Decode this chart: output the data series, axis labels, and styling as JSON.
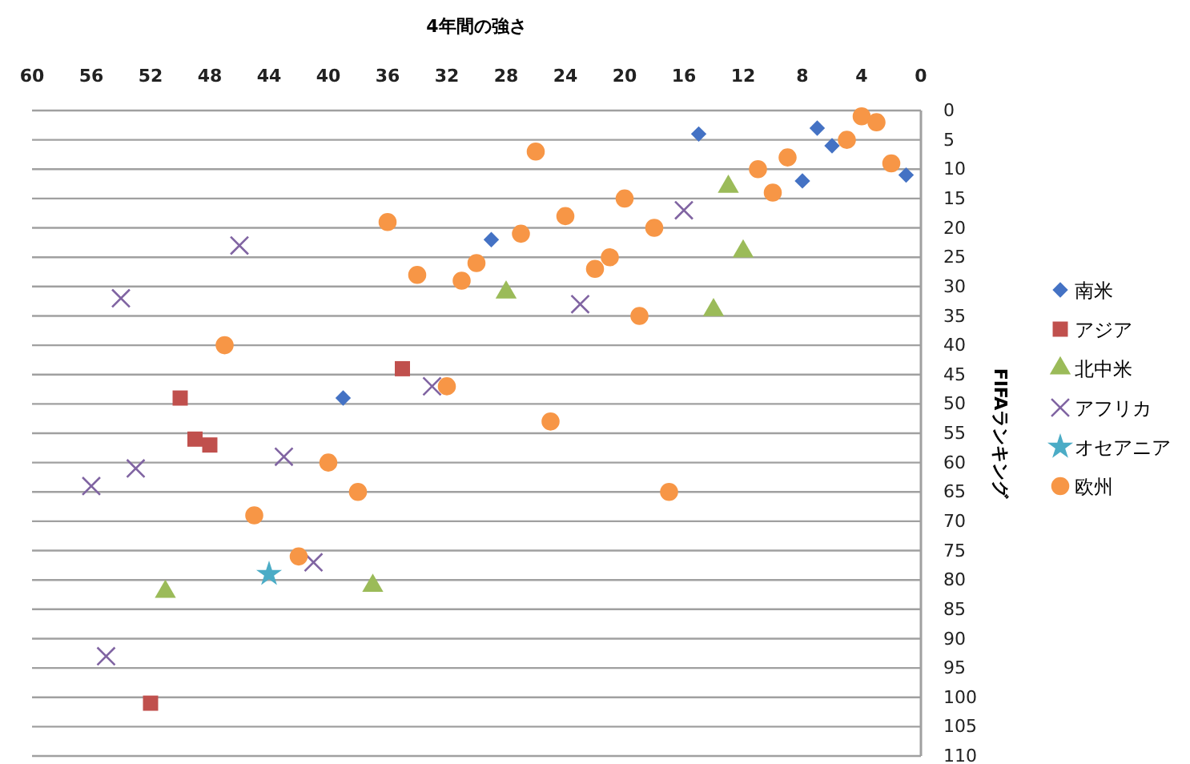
{
  "chart_data": {
    "type": "scatter",
    "xlabel": "4年間の強さ",
    "ylabel": "FIFAランキング",
    "xlim": [
      60,
      0
    ],
    "xticks": [
      60,
      56,
      52,
      48,
      44,
      40,
      36,
      32,
      28,
      24,
      20,
      16,
      12,
      8,
      4,
      0
    ],
    "ylim": [
      110,
      0
    ],
    "yticks": [
      0,
      5,
      10,
      15,
      20,
      25,
      30,
      35,
      40,
      45,
      50,
      55,
      60,
      65,
      70,
      75,
      80,
      85,
      90,
      95,
      100,
      105,
      110
    ],
    "grid": "y",
    "legend": "right",
    "series": [
      {
        "name": "南米",
        "color": "#4472c4",
        "marker": "diamond",
        "x": [
          15,
          7,
          6,
          8,
          1,
          29,
          39
        ],
        "values": [
          4,
          3,
          6,
          12,
          11,
          22,
          49
        ]
      },
      {
        "name": "アジア",
        "color": "#c0504d",
        "marker": "square",
        "x": [
          35,
          50,
          49,
          48,
          52
        ],
        "values": [
          44,
          49,
          56,
          57,
          101
        ]
      },
      {
        "name": "北中米",
        "color": "#9bbb59",
        "marker": "triangle",
        "x": [
          13,
          12,
          28,
          14,
          51,
          37
        ],
        "values": [
          13,
          24,
          31,
          34,
          82,
          81
        ]
      },
      {
        "name": "アフリカ",
        "color": "#8064a2",
        "marker": "cross",
        "x": [
          16,
          46,
          54,
          23,
          33,
          43,
          53,
          56,
          41,
          55
        ],
        "values": [
          17,
          23,
          32,
          33,
          47,
          59,
          61,
          64,
          77,
          93
        ]
      },
      {
        "name": "オセアニア",
        "color": "#4bacc6",
        "marker": "star",
        "x": [
          44
        ],
        "values": [
          79
        ]
      },
      {
        "name": "欧州",
        "color": "#f79646",
        "marker": "circle",
        "x": [
          4,
          3,
          5,
          2,
          9,
          11,
          10,
          26,
          20,
          24,
          36,
          18,
          27,
          21,
          30,
          22,
          34,
          31,
          19,
          47,
          32,
          25,
          40,
          38,
          17,
          45,
          42
        ],
        "values": [
          1,
          2,
          5,
          9,
          8,
          10,
          14,
          7,
          15,
          18,
          19,
          20,
          21,
          25,
          26,
          27,
          28,
          29,
          35,
          40,
          47,
          53,
          60,
          65,
          65,
          69,
          76
        ]
      }
    ]
  }
}
